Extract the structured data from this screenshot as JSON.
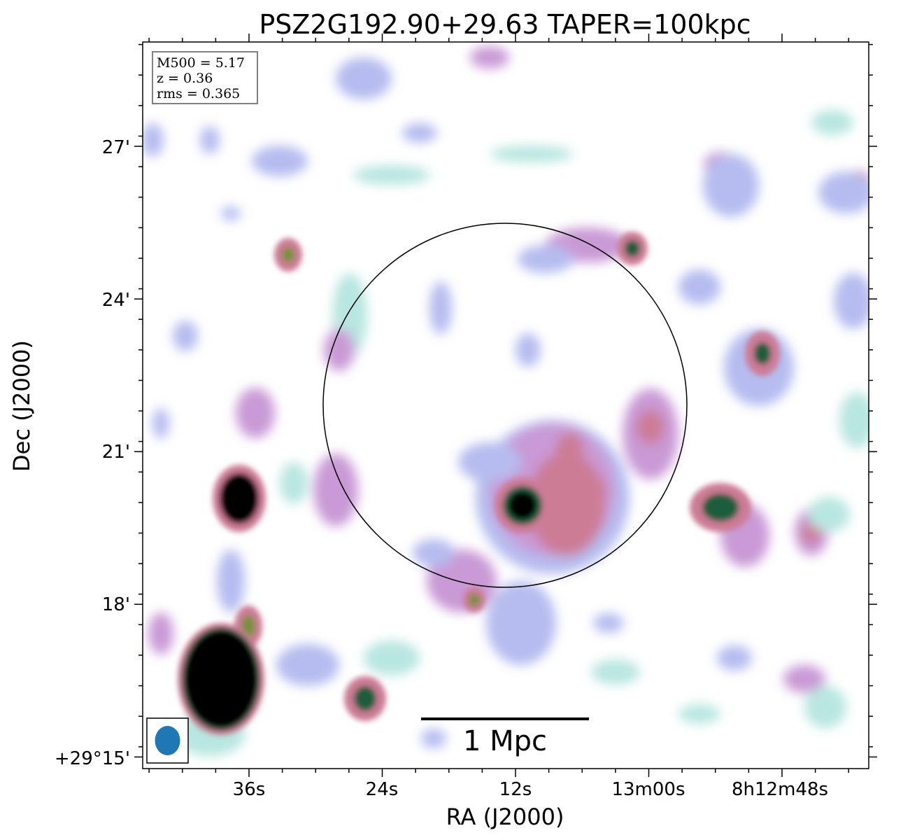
{
  "chart_data": {
    "type": "heatmap",
    "title": "PSZ2G192.90+29.63 TAPER=100kpc",
    "xlabel": "RA (J2000)",
    "ylabel": "Dec (J2000)",
    "x_ticks": [
      "36s",
      "24s",
      "12s",
      "13m00s",
      "8h12m48s"
    ],
    "y_ticks": [
      "27'",
      "24'",
      "21'",
      "18'",
      "+29°15'"
    ],
    "y_tick_values_arcmin": [
      27,
      24,
      21,
      18,
      15
    ],
    "info_box": {
      "lines": [
        "M500 = 5.17",
        "z = 0.36",
        "rms = 0.365"
      ]
    },
    "scalebar": {
      "label": "1 Mpc"
    },
    "beam": {
      "color": "#1f77b4"
    },
    "colormap": [
      "#ffffff",
      "#b8e6e0",
      "#b6bcef",
      "#c99ad6",
      "#cc7b95",
      "#7a8f3a",
      "#1f5d3e",
      "#000000"
    ],
    "circle": {
      "color": "#000000"
    }
  }
}
